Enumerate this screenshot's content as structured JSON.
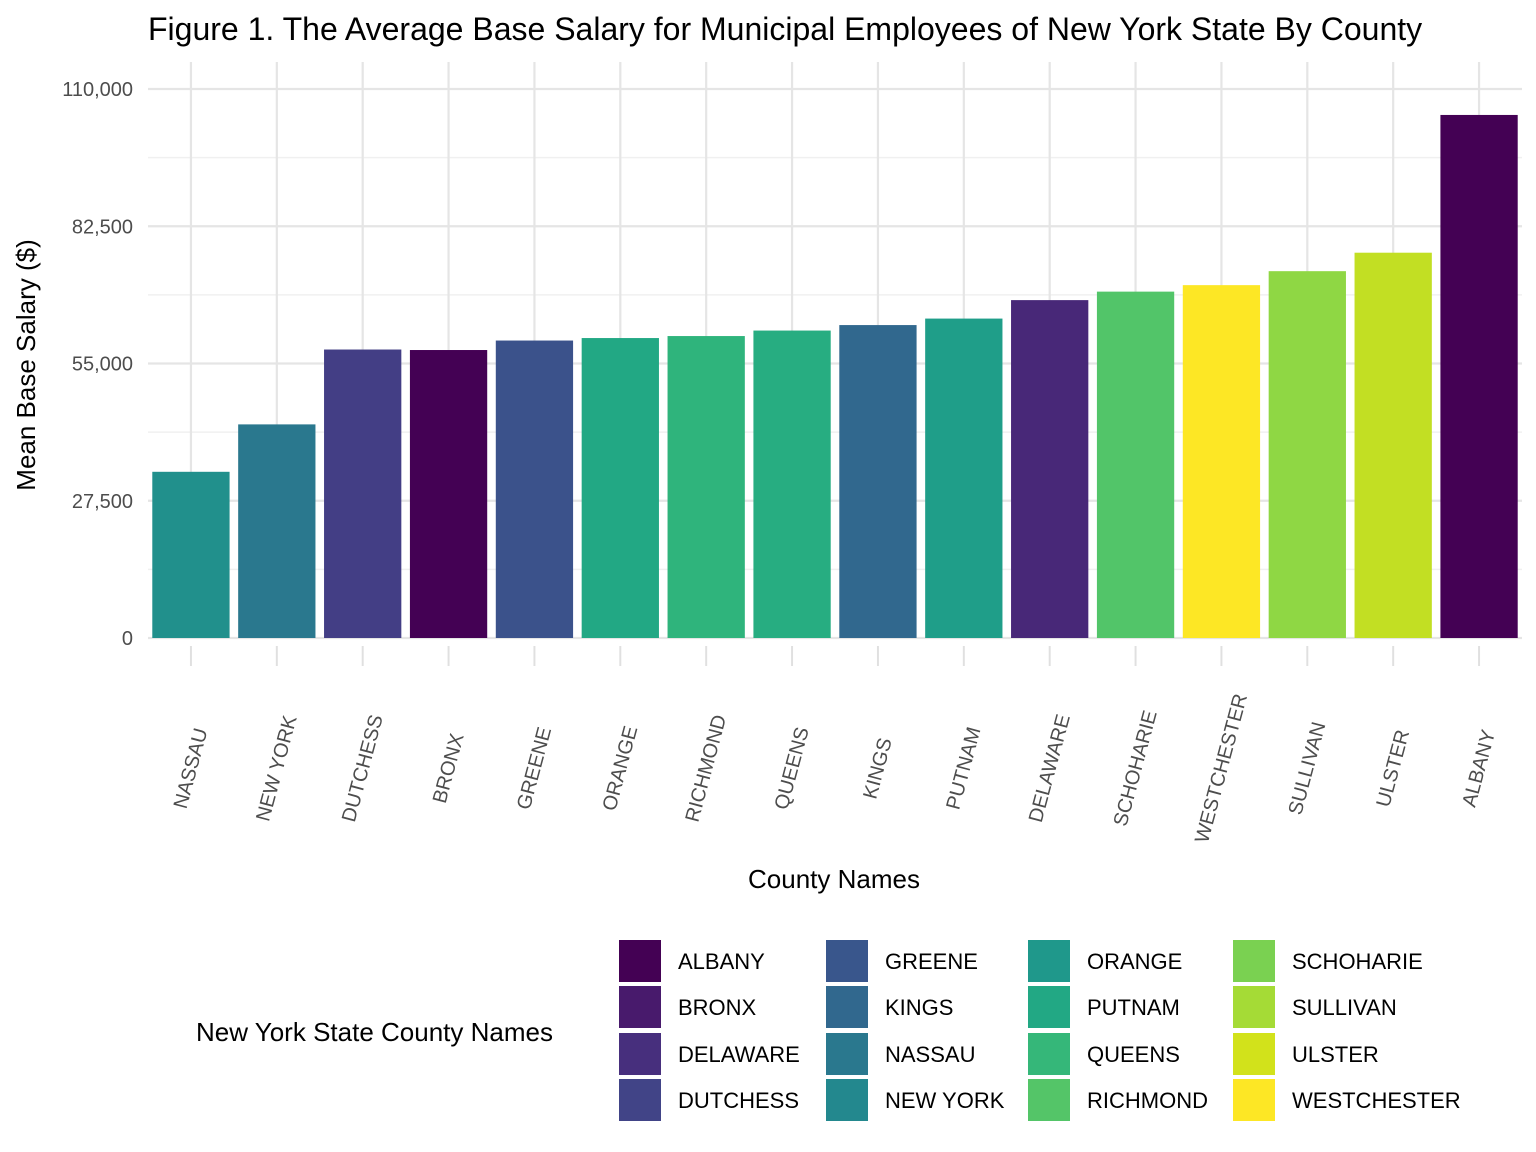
{
  "chart_data": {
    "type": "bar",
    "title": "Figure 1. The Average Base Salary for Municipal Employees of New York State By County",
    "xlabel": "County Names",
    "ylabel": "Mean Base Salary ($)",
    "ylim": [
      0,
      110000
    ],
    "yticks": [
      0,
      27500,
      55000,
      82500,
      110000
    ],
    "ytick_labels": [
      "0",
      "27,500",
      "55,000",
      "82,500",
      "110,000"
    ],
    "grid": true,
    "categories": [
      "NASSAU",
      "NEW YORK",
      "DUTCHESS",
      "BRONX",
      "GREENE",
      "ORANGE",
      "RICHMOND",
      "QUEENS",
      "KINGS",
      "PUTNAM",
      "DELAWARE",
      "SCHOHARIE",
      "WESTCHESTER",
      "SULLIVAN",
      "ULSTER",
      "ALBANY"
    ],
    "values": [
      33300,
      42800,
      57800,
      57700,
      59600,
      60100,
      60500,
      61600,
      62700,
      64000,
      67700,
      69400,
      70700,
      73500,
      77200,
      104800
    ],
    "colors": [
      "#21908C",
      "#2A788E",
      "#433E85",
      "#440154",
      "#3B528B",
      "#22A884",
      "#2FB47C",
      "#27AD81",
      "#31688E",
      "#1F9E89",
      "#482878",
      "#52C569",
      "#FDE725",
      "#8FD744",
      "#C2DF23",
      "#440154"
    ],
    "legend": {
      "title": "New York State County Names",
      "position": "bottom",
      "items": [
        {
          "label": "ALBANY",
          "color": "#440154"
        },
        {
          "label": "BRONX",
          "color": "#481A6C"
        },
        {
          "label": "DELAWARE",
          "color": "#472F7D"
        },
        {
          "label": "DUTCHESS",
          "color": "#414487"
        },
        {
          "label": "GREENE",
          "color": "#39568C"
        },
        {
          "label": "KINGS",
          "color": "#31688E"
        },
        {
          "label": "NASSAU",
          "color": "#2A788E"
        },
        {
          "label": "NEW YORK",
          "color": "#23888E"
        },
        {
          "label": "ORANGE",
          "color": "#1F988B"
        },
        {
          "label": "PUTNAM",
          "color": "#22A884"
        },
        {
          "label": "QUEENS",
          "color": "#35B779"
        },
        {
          "label": "RICHMOND",
          "color": "#54C568"
        },
        {
          "label": "SCHOHARIE",
          "color": "#7AD151"
        },
        {
          "label": "SULLIVAN",
          "color": "#A5DB36"
        },
        {
          "label": "ULSTER",
          "color": "#D2E21B"
        },
        {
          "label": "WESTCHESTER",
          "color": "#FDE725"
        }
      ]
    }
  }
}
